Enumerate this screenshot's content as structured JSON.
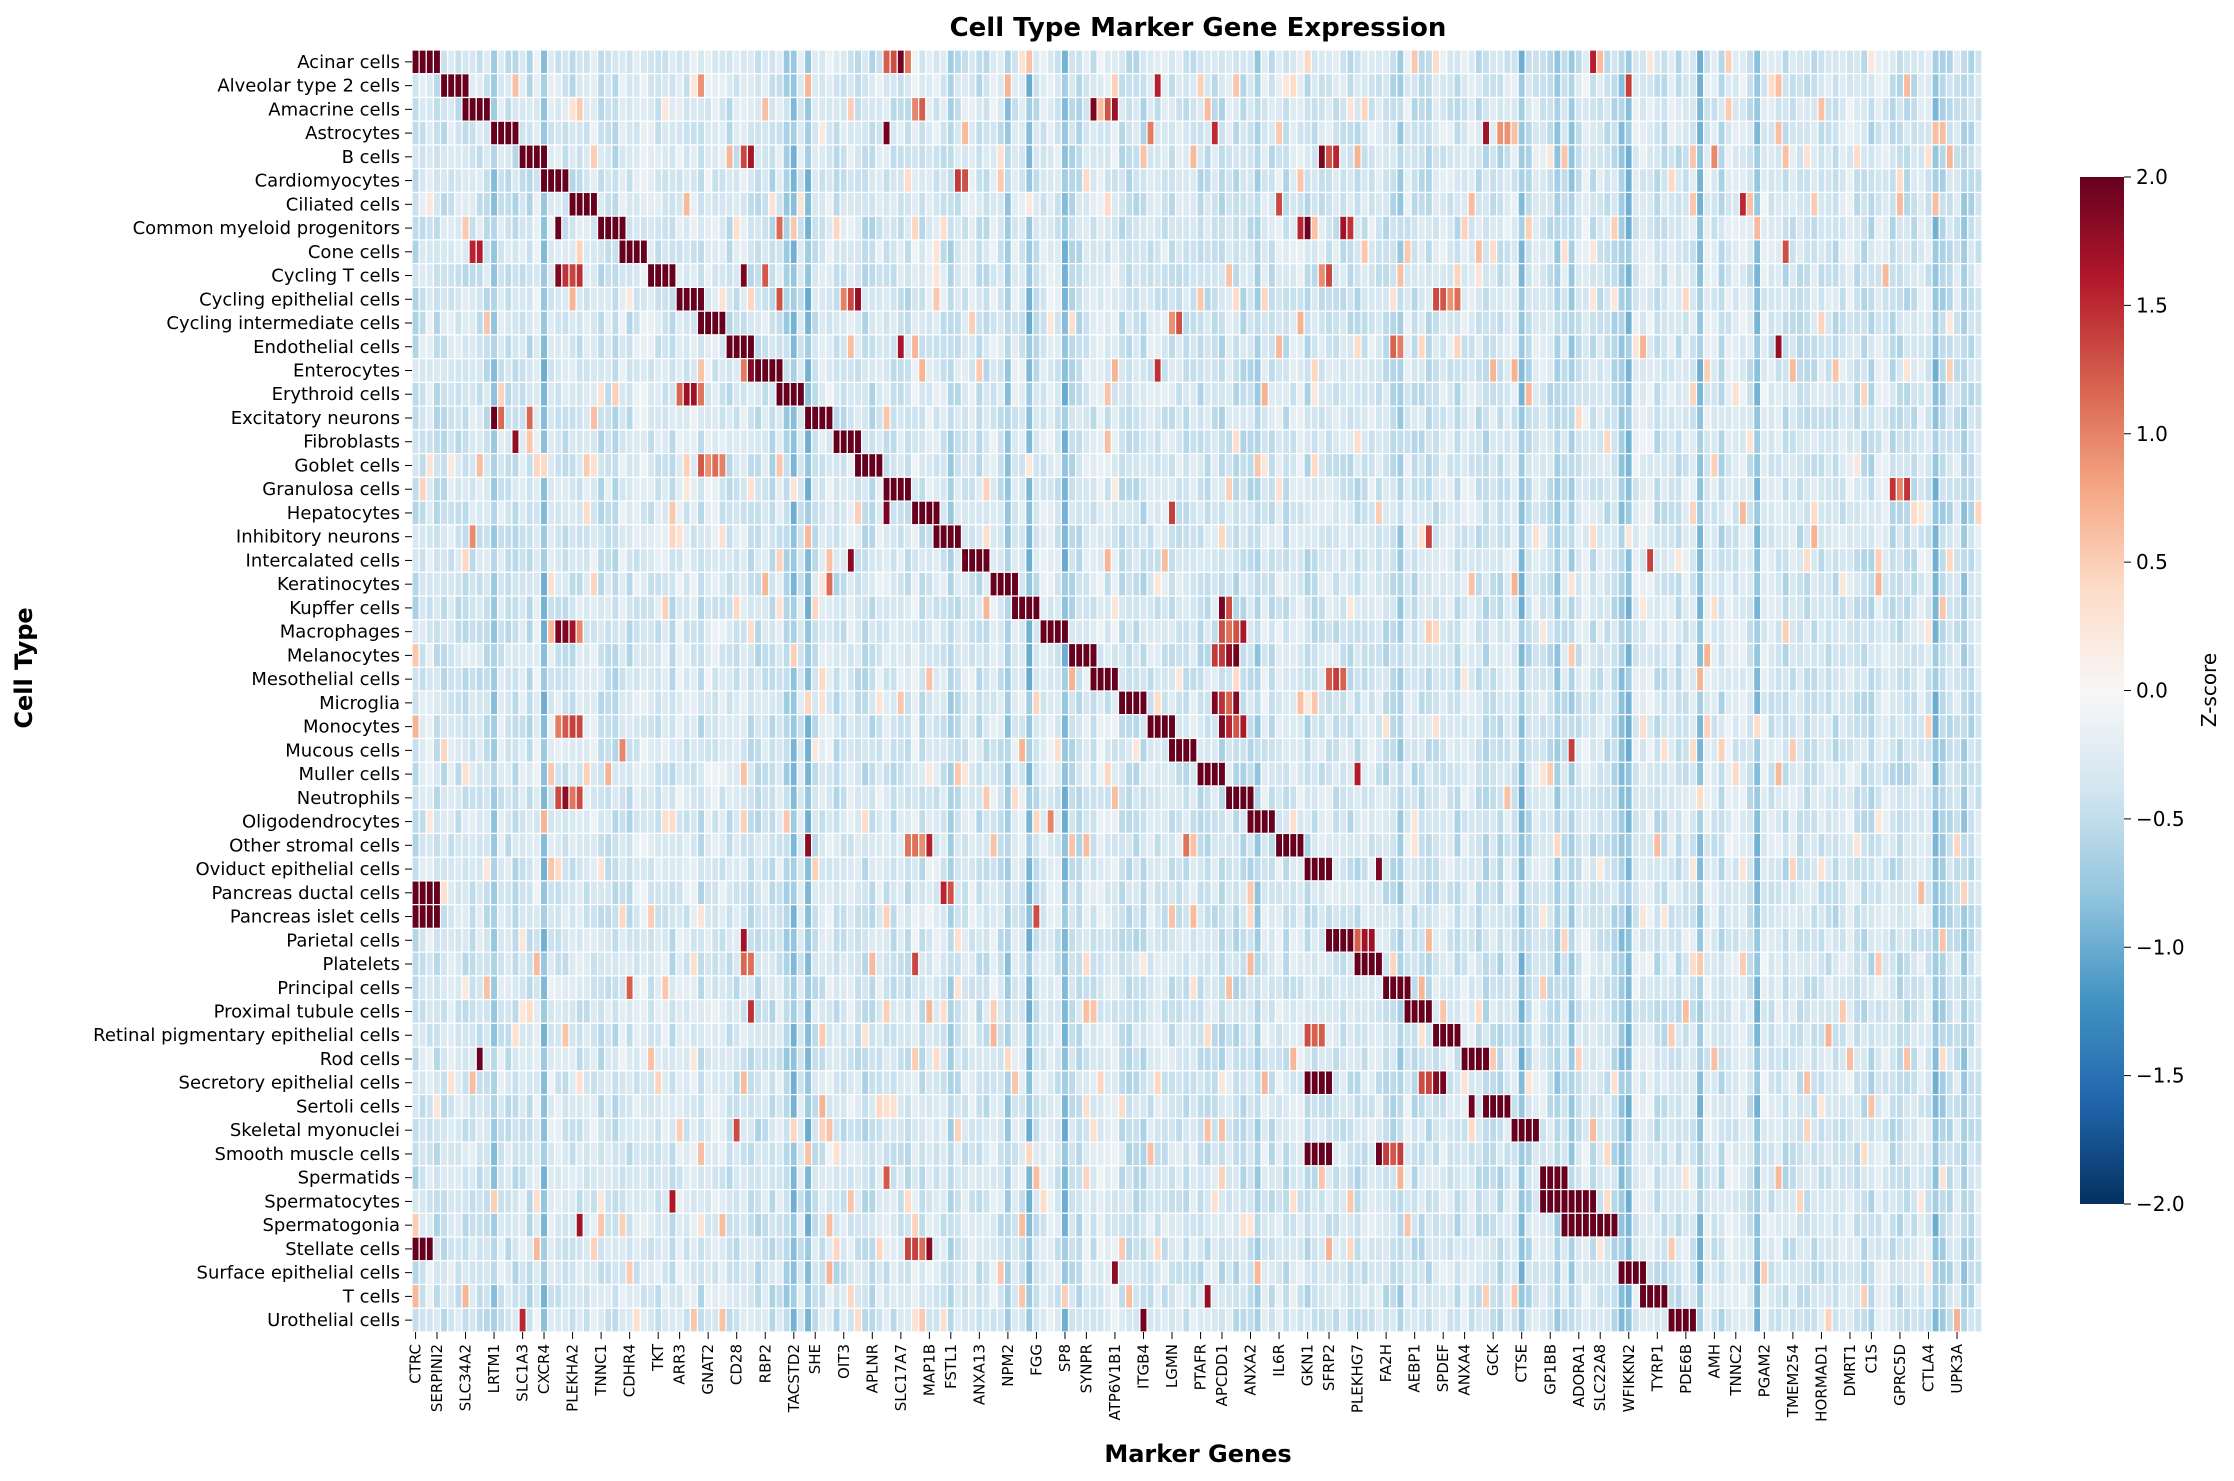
{
  "chart_data": {
    "type": "heatmap",
    "title": "Cell Type Marker Gene Expression",
    "xlabel": "Marker Genes",
    "ylabel": "Cell Type",
    "colorbar": {
      "label": "Z-score",
      "range": [
        -2.0,
        2.0
      ],
      "ticks": [
        "2.0",
        "1.5",
        "1.0",
        "0.5",
        "0.0",
        "−0.5",
        "−1.0",
        "−1.5",
        "−2.0"
      ],
      "colormap": "RdBu_r",
      "colors": [
        "#053061",
        "#2166ac",
        "#4393c3",
        "#92c5de",
        "#d1e5f0",
        "#f7f7f7",
        "#fddbc7",
        "#f4a582",
        "#d6604d",
        "#b2182b",
        "#67001f"
      ]
    },
    "num_genes": 220,
    "gene_tick_labels": [
      "CTRC",
      "SERPINI2",
      "SLC34A2",
      "LRTM1",
      "SLC1A3",
      "CXCR4",
      "PLEKHA2",
      "TNNC1",
      "CDHR4",
      "TKT",
      "ARR3",
      "GNAT2",
      "CD28",
      "RBP2",
      "TACSTD2",
      "SHE",
      "OIT3",
      "APLNR",
      "SLC17A7",
      "MAP1B",
      "FSTL1",
      "ANXA13",
      "NPM2",
      "FGG",
      "SP8",
      "SYNPR",
      "ATP6V1B1",
      "ITGB4",
      "LGMN",
      "PTAFR",
      "APCDD1",
      "ANXA2",
      "IL6R",
      "GKN1",
      "SFRP2",
      "PLEKHG7",
      "FA2H",
      "AEBP1",
      "SPDEF",
      "ANXA4",
      "GCK",
      "CTSE",
      "GP1BB",
      "ADORA1",
      "SLC22A8",
      "WFIKKN2",
      "TYRP1",
      "PDE6B",
      "AMH",
      "TNNC2",
      "PGAM2",
      "TMEM254",
      "HORMAD1",
      "DMRT1",
      "C1S",
      "GPRC5D",
      "CTLA4",
      "UPK3A"
    ],
    "cell_types": [
      "Acinar cells",
      "Alveolar type 2 cells",
      "Amacrine cells",
      "Astrocytes",
      "B cells",
      "Cardiomyocytes",
      "Ciliated cells",
      "Common myeloid progenitors",
      "Cone cells",
      "Cycling T cells",
      "Cycling epithelial cells",
      "Cycling intermediate cells",
      "Endothelial cells",
      "Enterocytes",
      "Erythroid cells",
      "Excitatory neurons",
      "Fibroblasts",
      "Goblet cells",
      "Granulosa cells",
      "Hepatocytes",
      "Inhibitory neurons",
      "Intercalated cells",
      "Keratinocytes",
      "Kupffer cells",
      "Macrophages",
      "Melanocytes",
      "Mesothelial cells",
      "Microglia",
      "Monocytes",
      "Mucous cells",
      "Muller cells",
      "Neutrophils",
      "Oligodendrocytes",
      "Other stromal cells",
      "Oviduct epithelial cells",
      "Pancreas ductal cells",
      "Pancreas islet cells",
      "Parietal cells",
      "Platelets",
      "Principal cells",
      "Proximal tubule cells",
      "Retinal pigmentary epithelial cells",
      "Rod cells",
      "Secretory epithelial cells",
      "Sertoli cells",
      "Skeletal myonuclei",
      "Smooth muscle cells",
      "Spermatids",
      "Spermatocytes",
      "Spermatogonia",
      "Stellate cells",
      "Surface epithelial cells",
      "T cells",
      "Urothelial cells"
    ],
    "marker_blocks": [
      [
        0,
        4
      ],
      [
        4,
        4
      ],
      [
        7,
        4
      ],
      [
        11,
        4
      ],
      [
        15,
        4
      ],
      [
        18,
        4
      ],
      [
        22,
        4
      ],
      [
        26,
        4
      ],
      [
        29,
        4
      ],
      [
        33,
        4
      ],
      [
        37,
        4
      ],
      [
        40,
        4
      ],
      [
        44,
        4
      ],
      [
        48,
        4
      ],
      [
        51,
        4
      ],
      [
        55,
        4
      ],
      [
        59,
        4
      ],
      [
        62,
        4
      ],
      [
        66,
        4
      ],
      [
        70,
        4
      ],
      [
        73,
        4
      ],
      [
        77,
        4
      ],
      [
        81,
        4
      ],
      [
        84,
        4
      ],
      [
        88,
        4
      ],
      [
        92,
        4
      ],
      [
        95,
        4
      ],
      [
        99,
        4
      ],
      [
        103,
        4
      ],
      [
        106,
        4
      ],
      [
        110,
        4
      ],
      [
        114,
        4
      ],
      [
        117,
        4
      ],
      [
        121,
        4
      ],
      [
        125,
        4
      ],
      [
        0,
        4
      ],
      [
        0,
        4
      ],
      [
        128,
        4
      ],
      [
        132,
        4
      ],
      [
        136,
        4
      ],
      [
        139,
        4
      ],
      [
        143,
        4
      ],
      [
        147,
        4
      ],
      [
        125,
        4
      ],
      [
        150,
        4
      ],
      [
        154,
        4
      ],
      [
        125,
        4
      ],
      [
        158,
        4
      ],
      [
        158,
        8
      ],
      [
        161,
        8
      ],
      [
        0,
        3
      ],
      [
        169,
        4
      ],
      [
        172,
        4
      ],
      [
        176,
        4
      ]
    ],
    "off_target_high": [
      [
        0,
        66,
        4
      ],
      [
        0,
        165,
        1
      ],
      [
        1,
        40,
        1
      ],
      [
        1,
        104,
        1
      ],
      [
        1,
        170,
        1
      ],
      [
        2,
        70,
        2
      ],
      [
        2,
        95,
        1
      ],
      [
        2,
        97,
        2
      ],
      [
        3,
        66,
        1
      ],
      [
        3,
        103,
        1
      ],
      [
        3,
        112,
        1
      ],
      [
        3,
        150,
        1
      ],
      [
        3,
        152,
        2
      ],
      [
        4,
        46,
        2
      ],
      [
        4,
        127,
        3
      ],
      [
        4,
        182,
        1
      ],
      [
        5,
        76,
        2
      ],
      [
        6,
        121,
        1
      ],
      [
        6,
        186,
        1
      ],
      [
        7,
        20,
        1
      ],
      [
        7,
        51,
        1
      ],
      [
        7,
        124,
        2
      ],
      [
        7,
        130,
        2
      ],
      [
        8,
        8,
        2
      ],
      [
        8,
        192,
        1
      ],
      [
        9,
        20,
        4
      ],
      [
        9,
        46,
        1
      ],
      [
        9,
        49,
        1
      ],
      [
        9,
        127,
        2
      ],
      [
        10,
        51,
        1
      ],
      [
        10,
        60,
        3
      ],
      [
        10,
        143,
        4
      ],
      [
        11,
        106,
        2
      ],
      [
        11,
        229,
        3
      ],
      [
        12,
        68,
        1
      ],
      [
        12,
        137,
        2
      ],
      [
        12,
        191,
        1
      ],
      [
        13,
        46,
        4
      ],
      [
        13,
        104,
        1
      ],
      [
        14,
        37,
        4
      ],
      [
        15,
        11,
        2
      ],
      [
        15,
        16,
        1
      ],
      [
        16,
        14,
        1
      ],
      [
        16,
        220,
        2
      ],
      [
        17,
        40,
        4
      ],
      [
        17,
        63,
        1
      ],
      [
        18,
        67,
        2
      ],
      [
        18,
        207,
        3
      ],
      [
        19,
        66,
        1
      ],
      [
        19,
        106,
        1
      ],
      [
        20,
        8,
        1
      ],
      [
        20,
        142,
        1
      ],
      [
        21,
        61,
        1
      ],
      [
        21,
        173,
        1
      ],
      [
        22,
        58,
        1
      ],
      [
        23,
        113,
        2
      ],
      [
        24,
        20,
        4
      ],
      [
        24,
        113,
        4
      ],
      [
        25,
        112,
        4
      ],
      [
        26,
        128,
        3
      ],
      [
        27,
        112,
        4
      ],
      [
        27,
        238,
        2
      ],
      [
        28,
        20,
        4
      ],
      [
        28,
        113,
        4
      ],
      [
        29,
        29,
        1
      ],
      [
        29,
        162,
        1
      ],
      [
        30,
        132,
        1
      ],
      [
        31,
        20,
        4
      ],
      [
        31,
        115,
        2
      ],
      [
        32,
        89,
        1
      ],
      [
        33,
        55,
        1
      ],
      [
        33,
        69,
        4
      ],
      [
        33,
        108,
        1
      ],
      [
        33,
        220,
        2
      ],
      [
        34,
        135,
        1
      ],
      [
        35,
        74,
        2
      ],
      [
        36,
        87,
        1
      ],
      [
        37,
        132,
        3
      ],
      [
        37,
        46,
        1
      ],
      [
        38,
        46,
        2
      ],
      [
        38,
        70,
        1
      ],
      [
        39,
        30,
        1
      ],
      [
        40,
        47,
        1
      ],
      [
        41,
        125,
        3
      ],
      [
        42,
        9,
        1
      ],
      [
        43,
        141,
        4
      ],
      [
        44,
        148,
        1
      ],
      [
        45,
        45,
        1
      ],
      [
        46,
        135,
        4
      ],
      [
        47,
        66,
        1
      ],
      [
        48,
        36,
        1
      ],
      [
        49,
        23,
        1
      ],
      [
        50,
        69,
        4
      ],
      [
        51,
        98,
        1
      ],
      [
        52,
        111,
        1
      ],
      [
        53,
        15,
        1
      ],
      [
        53,
        102,
        1
      ],
      [
        53,
        229,
        2
      ]
    ],
    "noise_seed": 4321
  }
}
